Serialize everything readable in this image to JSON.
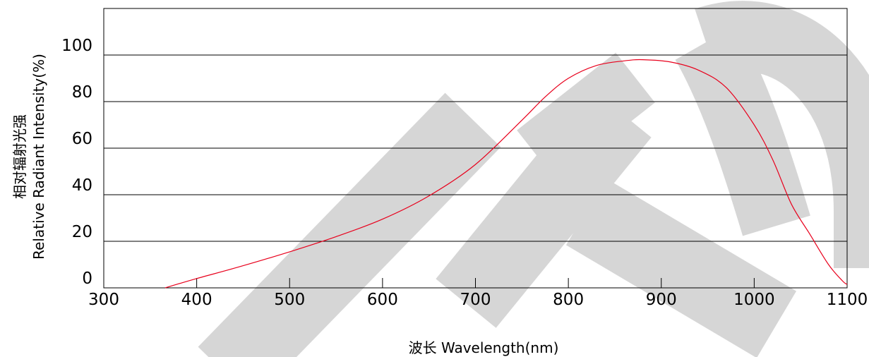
{
  "chart_data": {
    "type": "line",
    "xlabel": "波长  Wavelength(nm)",
    "ylabel_cn": "相对辐射光强",
    "ylabel_en": "Relative  Radiant Intensity(%)",
    "xlim": [
      300,
      1100
    ],
    "ylim": [
      0,
      120
    ],
    "x_ticks": [
      300,
      400,
      500,
      600,
      700,
      800,
      900,
      1000,
      1100
    ],
    "y_ticks": [
      0,
      20,
      40,
      60,
      80,
      100
    ],
    "grid": "horizontal",
    "series": [
      {
        "color": "#e8001c",
        "points": [
          [
            366,
            0
          ],
          [
            400,
            4
          ],
          [
            450,
            9.5
          ],
          [
            500,
            15.5
          ],
          [
            550,
            22
          ],
          [
            600,
            29.5
          ],
          [
            650,
            39.5
          ],
          [
            700,
            53
          ],
          [
            750,
            72
          ],
          [
            775,
            82
          ],
          [
            800,
            90
          ],
          [
            830,
            95.5
          ],
          [
            860,
            97.5
          ],
          [
            880,
            98
          ],
          [
            910,
            97
          ],
          [
            940,
            93.5
          ],
          [
            970,
            86
          ],
          [
            1000,
            70
          ],
          [
            1020,
            55
          ],
          [
            1040,
            36
          ],
          [
            1060,
            23
          ],
          [
            1080,
            10
          ],
          [
            1095,
            3
          ],
          [
            1100,
            1.5
          ]
        ]
      }
    ]
  },
  "watermark": {
    "text": "DTO",
    "color": "#d6d6d6"
  }
}
